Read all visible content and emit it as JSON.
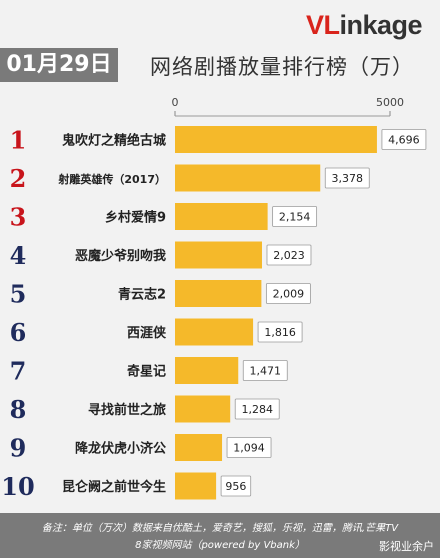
{
  "logo": {
    "v": "V",
    "l": "L",
    "rest": "ink",
    "age": "age"
  },
  "header": {
    "date": "01月29日",
    "title": "网络剧播放量排行榜（万）"
  },
  "colors": {
    "bar": "#f5b92a",
    "rank_top3": "#c8141b",
    "rank_rest": "#1f2b5c",
    "value_box_border": "#9a9a9a"
  },
  "chart_data": {
    "type": "bar",
    "orientation": "horizontal",
    "axis_ticks": [
      0,
      5000
    ],
    "xlim": [
      0,
      5000
    ],
    "ranks": [
      "1",
      "2",
      "3",
      "4",
      "5",
      "6",
      "7",
      "8",
      "9",
      "10"
    ],
    "categories": [
      "鬼吹灯之精绝古城",
      "射雕英雄传（2017）",
      "乡村爱情9",
      "恶魔少爷别吻我",
      "青云志2",
      "西涯侠",
      "奇星记",
      "寻找前世之旅",
      "降龙伏虎小济公",
      "昆仑阙之前世今生"
    ],
    "values": [
      4696,
      3378,
      2154,
      2023,
      2009,
      1816,
      1471,
      1284,
      1094,
      956
    ],
    "value_labels": [
      "4,696",
      "3,378",
      "2,154",
      "2,023",
      "2,009",
      "1,816",
      "1,471",
      "1,284",
      "1,094",
      "956"
    ],
    "grid": false,
    "legend": "none"
  },
  "footer": {
    "line1": "备注：单位（万次）数据来自优酷土，爱奇艺，搜狐，乐视，迅雷，腾讯,芒果TV",
    "line2": "8家视频网站（powered by Vbank）",
    "watermark": "影视业余户"
  }
}
